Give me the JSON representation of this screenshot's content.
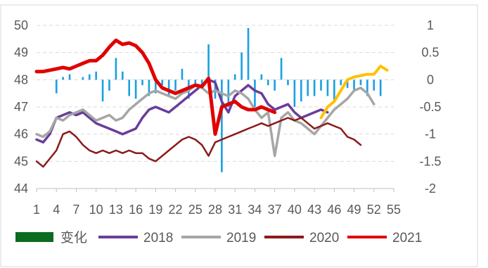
{
  "chart_data": {
    "type": "line",
    "left_axis": {
      "min": 44,
      "max": 50,
      "ticks": [
        44,
        45,
        46,
        47,
        48,
        49,
        50
      ]
    },
    "right_axis": {
      "min": -2,
      "max": 1,
      "ticks": [
        "-2",
        "-1.5",
        "-1",
        "-0.5",
        "0",
        "0.5",
        "1"
      ]
    },
    "x_ticks": [
      1,
      4,
      7,
      10,
      13,
      16,
      19,
      22,
      25,
      28,
      31,
      34,
      37,
      40,
      43,
      46,
      49,
      52,
      55
    ],
    "x_range": [
      1,
      55
    ],
    "grid": "horizontal dashed",
    "legend_position": "bottom",
    "colors": {
      "bar": "#1ba1e2",
      "bar_legend": "#0b6b1e",
      "s2018": "#6a3d9a",
      "s2019": "#a6a6a6",
      "s2020": "#8b1a1a",
      "s2021": "#e00000",
      "s2021_late": "#ffc000"
    },
    "bars": {
      "name": "变化",
      "axis": "right",
      "values": [
        [
          4,
          -0.25
        ],
        [
          5,
          0.05
        ],
        [
          6,
          0.1
        ],
        [
          8,
          0.05
        ],
        [
          9,
          0.1
        ],
        [
          10,
          0.15
        ],
        [
          11,
          -0.4
        ],
        [
          12,
          -0.2
        ],
        [
          13,
          0.4
        ],
        [
          14,
          0.15
        ],
        [
          15,
          -0.3
        ],
        [
          16,
          -0.35
        ],
        [
          17,
          -0.1
        ],
        [
          18,
          -0.3
        ],
        [
          19,
          -0.25
        ],
        [
          20,
          -0.1
        ],
        [
          21,
          -0.3
        ],
        [
          22,
          -0.2
        ],
        [
          23,
          0.2
        ],
        [
          24,
          -0.35
        ],
        [
          25,
          -0.1
        ],
        [
          26,
          -0.15
        ],
        [
          27,
          0.65
        ],
        [
          28,
          -0.35
        ],
        [
          29,
          -1.7
        ],
        [
          30,
          -0.5
        ],
        [
          31,
          0.1
        ],
        [
          32,
          0.5
        ],
        [
          33,
          0.95
        ],
        [
          34,
          -0.5
        ],
        [
          35,
          0.1
        ],
        [
          36,
          -0.1
        ],
        [
          37,
          -0.2
        ],
        [
          38,
          0.4
        ],
        [
          39,
          -0.1
        ],
        [
          40,
          -0.5
        ],
        [
          41,
          -0.4
        ],
        [
          42,
          -0.3
        ],
        [
          43,
          -0.3
        ],
        [
          44,
          -0.2
        ],
        [
          45,
          -0.3
        ],
        [
          46,
          -0.4
        ],
        [
          47,
          -0.1
        ],
        [
          48,
          -0.15
        ],
        [
          49,
          -0.2
        ],
        [
          50,
          -0.1
        ],
        [
          51,
          -0.3
        ],
        [
          52,
          -0.2
        ],
        [
          53,
          -0.3
        ]
      ]
    },
    "series": [
      {
        "name": "2018",
        "points": [
          [
            1,
            45.8
          ],
          [
            2,
            45.7
          ],
          [
            3,
            46.0
          ],
          [
            4,
            46.6
          ],
          [
            5,
            46.7
          ],
          [
            6,
            46.8
          ],
          [
            7,
            46.7
          ],
          [
            8,
            46.8
          ],
          [
            9,
            46.6
          ],
          [
            10,
            46.4
          ],
          [
            11,
            46.3
          ],
          [
            12,
            46.2
          ],
          [
            13,
            46.1
          ],
          [
            14,
            46.0
          ],
          [
            15,
            46.1
          ],
          [
            16,
            46.2
          ],
          [
            17,
            46.6
          ],
          [
            18,
            46.9
          ],
          [
            19,
            47.0
          ],
          [
            20,
            46.9
          ],
          [
            21,
            46.8
          ],
          [
            22,
            47.0
          ],
          [
            23,
            47.2
          ],
          [
            24,
            47.4
          ],
          [
            25,
            47.6
          ],
          [
            26,
            47.8
          ],
          [
            27,
            48.0
          ],
          [
            28,
            47.9
          ],
          [
            29,
            47.2
          ],
          [
            30,
            46.8
          ],
          [
            31,
            47.4
          ],
          [
            32,
            47.6
          ],
          [
            33,
            47.8
          ],
          [
            34,
            47.6
          ],
          [
            35,
            47.5
          ],
          [
            36,
            47.1
          ],
          [
            37,
            46.9
          ],
          [
            38,
            47.0
          ],
          [
            39,
            47.1
          ],
          [
            40,
            46.8
          ],
          [
            41,
            46.6
          ],
          [
            42,
            46.7
          ],
          [
            43,
            46.8
          ],
          [
            44,
            46.9
          ],
          [
            45,
            46.8
          ]
        ]
      },
      {
        "name": "2019",
        "points": [
          [
            1,
            46.0
          ],
          [
            2,
            45.9
          ],
          [
            3,
            46.1
          ],
          [
            4,
            46.6
          ],
          [
            5,
            46.5
          ],
          [
            6,
            46.7
          ],
          [
            7,
            46.8
          ],
          [
            8,
            46.9
          ],
          [
            9,
            46.7
          ],
          [
            10,
            46.5
          ],
          [
            11,
            46.6
          ],
          [
            12,
            46.7
          ],
          [
            13,
            46.5
          ],
          [
            14,
            46.6
          ],
          [
            15,
            46.9
          ],
          [
            16,
            47.1
          ],
          [
            17,
            47.3
          ],
          [
            18,
            47.5
          ],
          [
            19,
            47.6
          ],
          [
            20,
            47.5
          ],
          [
            21,
            47.4
          ],
          [
            22,
            47.3
          ],
          [
            23,
            47.5
          ],
          [
            24,
            47.6
          ],
          [
            25,
            47.8
          ],
          [
            26,
            47.7
          ],
          [
            27,
            47.5
          ],
          [
            28,
            47.6
          ],
          [
            29,
            47.5
          ],
          [
            30,
            47.4
          ],
          [
            31,
            47.6
          ],
          [
            32,
            47.5
          ],
          [
            33,
            47.3
          ],
          [
            34,
            46.9
          ],
          [
            35,
            46.6
          ],
          [
            36,
            46.8
          ],
          [
            37,
            45.2
          ],
          [
            38,
            46.6
          ],
          [
            39,
            46.8
          ],
          [
            40,
            46.5
          ],
          [
            41,
            46.4
          ],
          [
            42,
            46.2
          ],
          [
            43,
            46.0
          ],
          [
            44,
            46.3
          ],
          [
            45,
            46.6
          ],
          [
            46,
            46.9
          ],
          [
            47,
            47.1
          ],
          [
            48,
            47.3
          ],
          [
            49,
            47.6
          ],
          [
            50,
            47.7
          ],
          [
            51,
            47.5
          ],
          [
            52,
            47.1
          ]
        ]
      },
      {
        "name": "2020",
        "points": [
          [
            1,
            45.0
          ],
          [
            2,
            44.8
          ],
          [
            3,
            45.1
          ],
          [
            4,
            45.4
          ],
          [
            5,
            46.0
          ],
          [
            6,
            46.1
          ],
          [
            7,
            45.9
          ],
          [
            8,
            45.6
          ],
          [
            9,
            45.4
          ],
          [
            10,
            45.3
          ],
          [
            11,
            45.4
          ],
          [
            12,
            45.3
          ],
          [
            13,
            45.4
          ],
          [
            14,
            45.3
          ],
          [
            15,
            45.4
          ],
          [
            16,
            45.3
          ],
          [
            17,
            45.3
          ],
          [
            18,
            45.1
          ],
          [
            19,
            45.0
          ],
          [
            20,
            45.2
          ],
          [
            21,
            45.4
          ],
          [
            22,
            45.6
          ],
          [
            23,
            45.8
          ],
          [
            24,
            45.9
          ],
          [
            25,
            45.8
          ],
          [
            26,
            45.6
          ],
          [
            27,
            45.2
          ],
          [
            28,
            45.7
          ],
          [
            29,
            45.8
          ],
          [
            30,
            45.9
          ],
          [
            31,
            46.0
          ],
          [
            32,
            46.1
          ],
          [
            33,
            46.2
          ],
          [
            34,
            46.3
          ],
          [
            35,
            46.4
          ],
          [
            36,
            46.3
          ],
          [
            37,
            46.4
          ],
          [
            38,
            46.5
          ],
          [
            39,
            46.6
          ],
          [
            40,
            46.5
          ],
          [
            41,
            46.6
          ],
          [
            42,
            46.4
          ],
          [
            43,
            46.2
          ],
          [
            44,
            46.3
          ],
          [
            45,
            46.4
          ],
          [
            46,
            46.3
          ],
          [
            47,
            46.2
          ],
          [
            48,
            45.9
          ],
          [
            49,
            45.8
          ],
          [
            50,
            45.6
          ]
        ]
      },
      {
        "name": "2021",
        "points": [
          [
            1,
            48.3
          ],
          [
            2,
            48.3
          ],
          [
            3,
            48.35
          ],
          [
            4,
            48.4
          ],
          [
            5,
            48.45
          ],
          [
            6,
            48.4
          ],
          [
            7,
            48.5
          ],
          [
            8,
            48.6
          ],
          [
            9,
            48.7
          ],
          [
            10,
            48.7
          ],
          [
            11,
            48.9
          ],
          [
            12,
            49.2
          ],
          [
            13,
            49.45
          ],
          [
            14,
            49.3
          ],
          [
            15,
            49.35
          ],
          [
            16,
            49.25
          ],
          [
            17,
            49.0
          ],
          [
            18,
            48.6
          ],
          [
            19,
            48.0
          ],
          [
            20,
            47.7
          ],
          [
            21,
            47.6
          ],
          [
            22,
            47.5
          ],
          [
            23,
            47.6
          ],
          [
            24,
            47.7
          ],
          [
            25,
            47.8
          ],
          [
            26,
            47.75
          ],
          [
            27,
            48.05
          ],
          [
            28,
            46.0
          ],
          [
            29,
            47.0
          ],
          [
            30,
            47.1
          ],
          [
            31,
            47.2
          ],
          [
            32,
            47.0
          ],
          [
            33,
            46.9
          ],
          [
            34,
            46.9
          ],
          [
            35,
            47.0
          ],
          [
            36,
            46.9
          ],
          [
            37,
            46.8
          ]
        ]
      },
      {
        "name": "",
        "points": [
          [
            44,
            46.6
          ],
          [
            45,
            47.0
          ],
          [
            46,
            47.2
          ],
          [
            47,
            47.6
          ],
          [
            48,
            48.0
          ],
          [
            49,
            48.1
          ],
          [
            50,
            48.15
          ],
          [
            51,
            48.2
          ],
          [
            52,
            48.2
          ],
          [
            53,
            48.5
          ],
          [
            54,
            48.35
          ]
        ]
      }
    ],
    "legend": [
      {
        "label": "变化",
        "kind": "bar"
      },
      {
        "label": "2018",
        "kind": "line"
      },
      {
        "label": "2019",
        "kind": "line"
      },
      {
        "label": "2020",
        "kind": "line"
      },
      {
        "label": "2021",
        "kind": "line"
      }
    ]
  }
}
